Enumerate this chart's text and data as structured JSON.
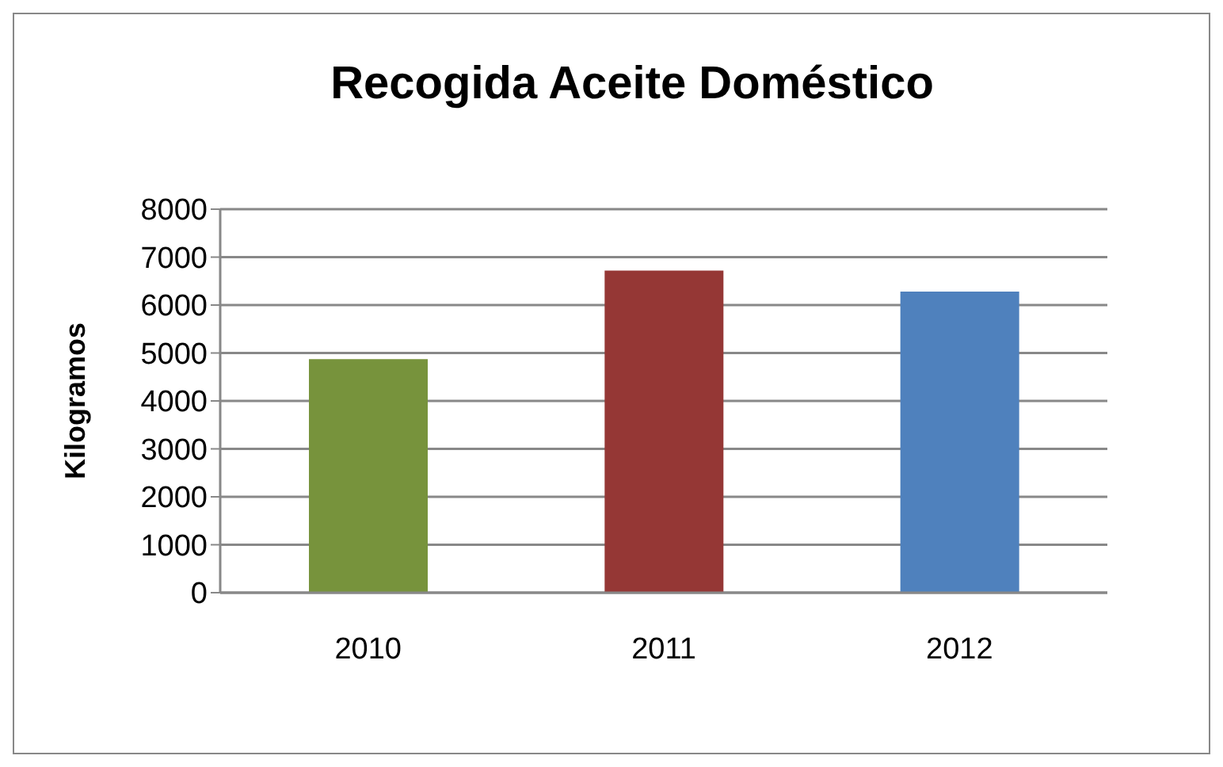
{
  "chart_data": {
    "type": "bar",
    "title": "Recogida Aceite Doméstico",
    "ylabel": "Kilogramos",
    "categories": [
      "2010",
      "2011",
      "2012"
    ],
    "values": [
      4870,
      6720,
      6280
    ],
    "colors": [
      "#77933c",
      "#953735",
      "#4f81bd"
    ],
    "ylim": [
      0,
      8000
    ],
    "yticks": [
      0,
      1000,
      2000,
      3000,
      4000,
      5000,
      6000,
      7000,
      8000
    ],
    "grid": "y"
  }
}
